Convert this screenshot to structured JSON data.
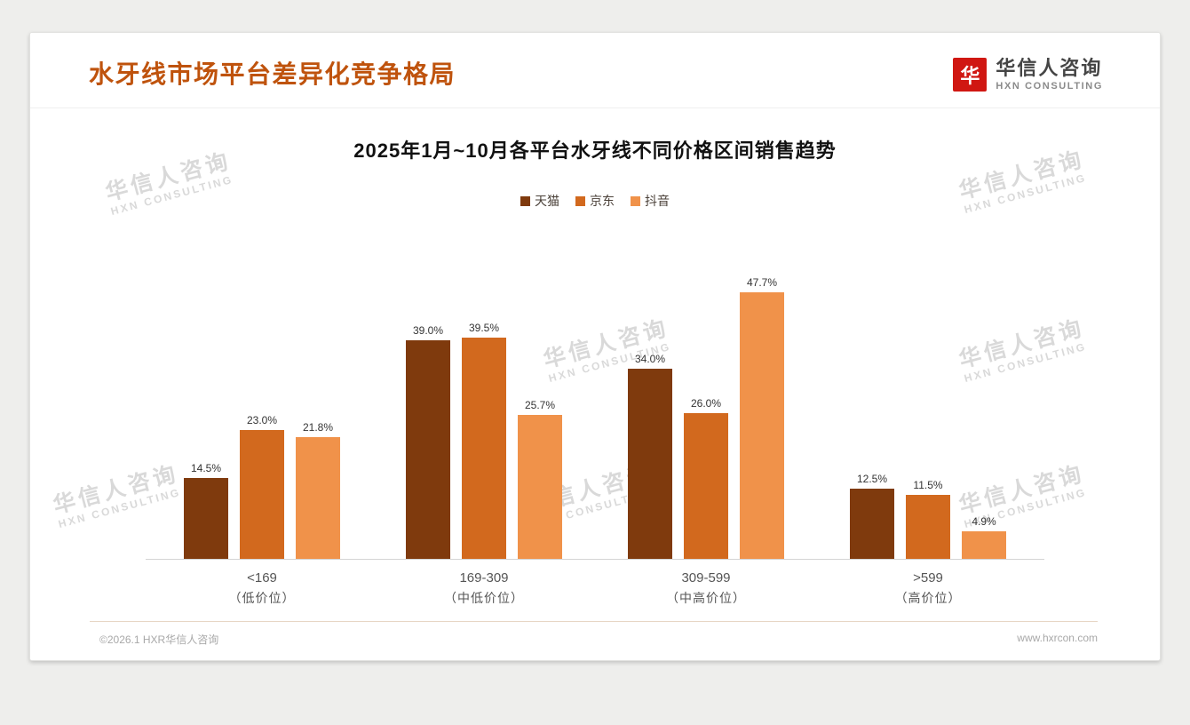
{
  "header": {
    "title": "水牙线市场平台差异化竞争格局",
    "logo": {
      "mark": "华",
      "brand": "华信人咨询",
      "sub": "HXN CONSULTING"
    }
  },
  "colors": {
    "title": "#bf530d",
    "logo": "#d01712"
  },
  "watermark": {
    "line1": "华信人咨询",
    "line2": "HXN CONSULTING"
  },
  "chart_data": {
    "type": "bar",
    "title": "2025年1月~10月各平台水牙线不同价格区间销售趋势",
    "categories": [
      {
        "label": "<169",
        "sublabel": "（低价位）"
      },
      {
        "label": "169-309",
        "sublabel": "（中低价位）"
      },
      {
        "label": "309-599",
        "sublabel": "（中高价位）"
      },
      {
        "label": ">599",
        "sublabel": "（高价位）"
      }
    ],
    "series": [
      {
        "name": "天猫",
        "color": "#7f3a0d",
        "values": [
          14.5,
          39.0,
          34.0,
          12.5
        ]
      },
      {
        "name": "京东",
        "color": "#d2691e",
        "values": [
          23.0,
          39.5,
          26.0,
          11.5
        ]
      },
      {
        "name": "抖音",
        "color": "#f0924a",
        "values": [
          21.8,
          25.7,
          47.7,
          4.9
        ]
      }
    ],
    "ylim": [
      0,
      50
    ],
    "grid": false,
    "legend_position": "top",
    "value_label_suffix": "%"
  },
  "footer": {
    "left": "©2026.1 HXR华信人咨询",
    "right": "www.hxrcon.com"
  }
}
